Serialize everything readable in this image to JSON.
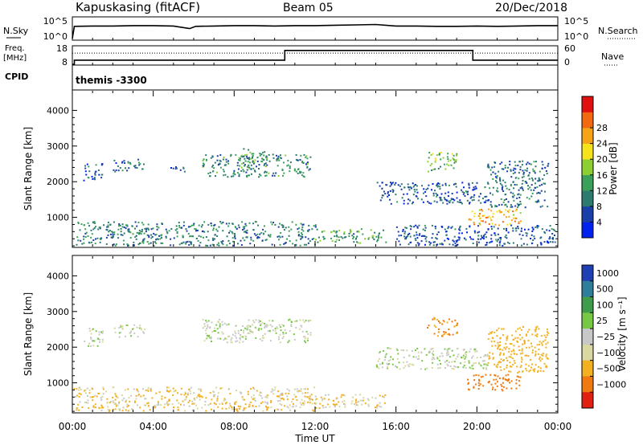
{
  "header": {
    "station": "Kapuskasing (fitACF)",
    "beam": "Beam 05",
    "date": "20/Dec/2018"
  },
  "nsky_panel": {
    "left_label": "N.Sky",
    "left_ticks": [
      "10^5",
      "10^0"
    ],
    "right_ticks": [
      "10^5",
      "10^0"
    ],
    "right_label": "N.Search"
  },
  "freq_panel": {
    "left_label_1": "Freq.",
    "left_label_2": "[MHz]",
    "left_ticks": [
      "18",
      "8"
    ],
    "right_ticks": [
      "60",
      "0"
    ],
    "right_label": "Nave",
    "cpid_label": "CPID",
    "cpid_value": "themis -3300"
  },
  "x_axis": {
    "label": "Time UT",
    "ticks": [
      "00:00",
      "04:00",
      "08:00",
      "12:00",
      "16:00",
      "20:00",
      "00:00"
    ]
  },
  "power_panel": {
    "ylabel": "Slant Range [km]",
    "yticks": [
      "1000",
      "2000",
      "3000",
      "4000"
    ],
    "colorbar_label": "Power [dB]",
    "colorbar_ticks": [
      "4",
      "8",
      "12",
      "16",
      "20",
      "24",
      "28"
    ],
    "colors": [
      "#0022ee",
      "#1a3fa8",
      "#2d7a6e",
      "#3aa05a",
      "#8ccf30",
      "#f6e31c",
      "#f5a418",
      "#f26a10",
      "#e01010"
    ]
  },
  "velocity_panel": {
    "ylabel": "Slant Range [km]",
    "yticks": [
      "1000",
      "2000",
      "3000",
      "4000"
    ],
    "colorbar_label": "Velocity [m s⁻¹]",
    "colorbar_ticks": [
      "1000",
      "500",
      "100",
      "25",
      "−25",
      "−100",
      "−500",
      "−1000"
    ],
    "colors": [
      "#1f3fb4",
      "#2e7d9a",
      "#3f9c4a",
      "#78c848",
      "#c8c8c8",
      "#d8d8a0",
      "#f3b020",
      "#f07a10",
      "#e02010"
    ]
  },
  "chart_data": [
    {
      "type": "line",
      "title": "N.Sky / N.Search",
      "x_range_hours": [
        0,
        24
      ],
      "series": [
        {
          "name": "N.Sky",
          "x_hours": [
            0,
            0.1,
            1,
            2,
            3,
            4,
            5,
            5.8,
            6.1,
            7,
            8,
            9,
            10,
            11,
            12,
            13,
            14,
            15,
            16,
            17,
            18,
            19,
            20,
            21,
            22,
            23,
            24
          ],
          "log_value": [
            0,
            3.3,
            3.4,
            3.4,
            3.5,
            3.5,
            3.4,
            2.7,
            3.3,
            3.4,
            3.5,
            3.5,
            3.4,
            3.5,
            3.5,
            3.6,
            3.7,
            3.8,
            3.4,
            3.4,
            3.3,
            3.3,
            3.4,
            3.3,
            3.4,
            3.5,
            3.5
          ]
        }
      ]
    },
    {
      "type": "line",
      "title": "Freq / Nave",
      "x_range_hours": [
        0,
        24
      ],
      "ylim_freq_mhz": [
        8,
        18
      ],
      "ylim_nave": [
        0,
        60
      ],
      "series": [
        {
          "name": "Freq.",
          "x_hours": [
            0,
            0.1,
            0.1,
            10.5,
            10.5,
            19.8,
            19.8,
            24
          ],
          "values_mhz": [
            8,
            8,
            10.3,
            10.3,
            15.8,
            15.8,
            10.3,
            10.3
          ]
        },
        {
          "name": "Nave",
          "x_hours": [
            0,
            24
          ],
          "values": [
            38,
            38
          ]
        }
      ]
    },
    {
      "type": "heatmap",
      "title": "Power [dB]",
      "xlabel": "Time UT",
      "ylabel": "Slant Range [km]",
      "x_range_hours": [
        0,
        24
      ],
      "ylim_km": [
        180,
        4550
      ],
      "color_range_db": [
        0,
        32
      ],
      "regions": [
        {
          "t_hours": [
            0.5,
            1.5
          ],
          "range_km": [
            2050,
            2550
          ],
          "power_db": 6
        },
        {
          "t_hours": [
            2.0,
            3.6
          ],
          "range_km": [
            2300,
            2650
          ],
          "power_db": 8
        },
        {
          "t_hours": [
            4.5,
            5.6
          ],
          "range_km": [
            2300,
            2450
          ],
          "power_db": 7
        },
        {
          "t_hours": [
            6.4,
            11.8
          ],
          "range_km": [
            2150,
            2800
          ],
          "power_db": 10
        },
        {
          "t_hours": [
            8.2,
            9.6
          ],
          "range_km": [
            2450,
            2950
          ],
          "power_db": 12
        },
        {
          "t_hours": [
            0.0,
            12.0
          ],
          "range_km": [
            200,
            900
          ],
          "power_db": 9
        },
        {
          "t_hours": [
            12.0,
            15.5
          ],
          "range_km": [
            300,
            700
          ],
          "power_db": 12
        },
        {
          "t_hours": [
            15.0,
            20.5
          ],
          "range_km": [
            1400,
            2000
          ],
          "power_db": 6
        },
        {
          "t_hours": [
            17.5,
            19.0
          ],
          "range_km": [
            2300,
            2850
          ],
          "power_db": 14
        },
        {
          "t_hours": [
            19.5,
            22.2
          ],
          "range_km": [
            800,
            1250
          ],
          "power_db": 22
        },
        {
          "t_hours": [
            20.5,
            23.5
          ],
          "range_km": [
            1300,
            2600
          ],
          "power_db": 8
        },
        {
          "t_hours": [
            16.0,
            24.0
          ],
          "range_km": [
            200,
            800
          ],
          "power_db": 6
        }
      ]
    },
    {
      "type": "heatmap",
      "title": "Velocity [m s⁻¹]",
      "xlabel": "Time UT",
      "ylabel": "Slant Range [km]",
      "x_range_hours": [
        0,
        24
      ],
      "ylim_km": [
        180,
        4550
      ],
      "color_range_ms": [
        -1000,
        1000
      ],
      "regions": [
        {
          "t_hours": [
            0.5,
            1.5
          ],
          "range_km": [
            2050,
            2550
          ],
          "velocity_ms": 0
        },
        {
          "t_hours": [
            2.0,
            3.6
          ],
          "range_km": [
            2300,
            2650
          ],
          "velocity_ms": 0
        },
        {
          "t_hours": [
            6.4,
            11.8
          ],
          "range_km": [
            2150,
            2800
          ],
          "velocity_ms": 0
        },
        {
          "t_hours": [
            0.0,
            12.0
          ],
          "range_km": [
            200,
            900
          ],
          "velocity_ms": -60
        },
        {
          "t_hours": [
            12.0,
            15.5
          ],
          "range_km": [
            300,
            700
          ],
          "velocity_ms": -50
        },
        {
          "t_hours": [
            15.0,
            20.5
          ],
          "range_km": [
            1400,
            2000
          ],
          "velocity_ms": 0
        },
        {
          "t_hours": [
            17.5,
            19.0
          ],
          "range_km": [
            2300,
            2850
          ],
          "velocity_ms": -300
        },
        {
          "t_hours": [
            19.5,
            22.2
          ],
          "range_km": [
            800,
            1250
          ],
          "velocity_ms": -500
        },
        {
          "t_hours": [
            20.5,
            23.5
          ],
          "range_km": [
            1300,
            2600
          ],
          "velocity_ms": -200
        }
      ]
    }
  ]
}
